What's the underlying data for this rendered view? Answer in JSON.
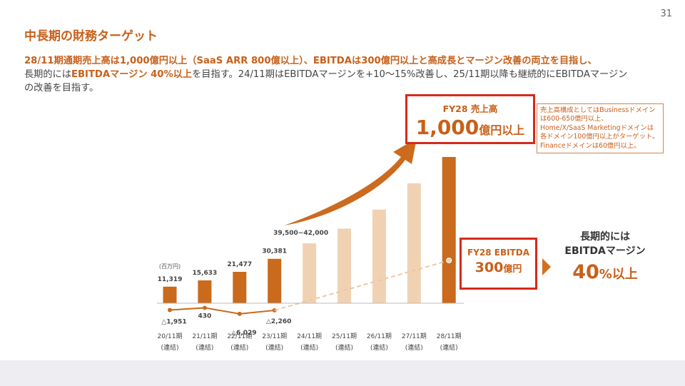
{
  "page_number": "31",
  "title": "中長期の財務ターゲット",
  "lead": {
    "line1": "28/11期通期売上高は1,000億円以上（SaaS ARR 800億以上）、EBITDAは300億円以上と高成長とマージン改善の両立を目指し、",
    "line2_pre": "長期的には",
    "line2_hl": "EBITDAマージン 40%以上",
    "line2_post": "を目指す。24/11期はEBITDAマージンを+10～15%改善し、25/11期以降も継続的にEBITDAマージン",
    "line3": "の改善を目指す。"
  },
  "revenue_target": {
    "label": "FY28 売上高",
    "value": "1,000",
    "unit": "億円以上"
  },
  "note": {
    "lines": [
      "売上高構成としてはBusinessドメイン",
      "は600-650億円以上、",
      "Home/X/SaaS Marketingドメインは",
      "各ドメイン100億円以上がターゲット。",
      "Financeドメインは60億円以上。"
    ]
  },
  "ebitda_target": {
    "label": "FY28 EBITDA",
    "value": "300",
    "unit": "億円"
  },
  "long_term": {
    "label_line1": "長期的には",
    "label_line2": "EBITDAマージン",
    "value": "40",
    "unit": "%以上"
  },
  "colors": {
    "accent": "#c8601a",
    "bar_actual": "#c96a1c",
    "bar_target": "#f0d2b3",
    "box_border": "#d52a1c",
    "arrow": "#cc6a1d"
  },
  "chart_data": {
    "type": "bar",
    "unit_label": "(百万円)",
    "categories": [
      "20/11期",
      "21/11期",
      "22/11期",
      "23/11期",
      "24/11期",
      "25/11期",
      "26/11期",
      "27/11期",
      "28/11期"
    ],
    "category_sub": "(連結)",
    "series": [
      {
        "values": [
          11319,
          15633,
          21477,
          30381,
          41000,
          null,
          null,
          null,
          null
        ]
      },
      {
        "values": [
          -1951,
          430,
          -6029,
          -2260,
          null,
          null,
          null,
          null,
          30000
        ]
      }
    ],
    "revenue_labels": [
      "11,319",
      "15,633",
      "21,477",
      "30,381",
      "39,500~42,000",
      "",
      "",
      "",
      ""
    ],
    "ebitda_labels": [
      "△1,951",
      "430",
      "△6,029",
      "△2,260",
      "",
      "",
      "",
      "",
      ""
    ],
    "estimated_bar_levels": [
      11319,
      15633,
      21477,
      30381,
      41000,
      51000,
      64000,
      82000,
      100000
    ]
  }
}
